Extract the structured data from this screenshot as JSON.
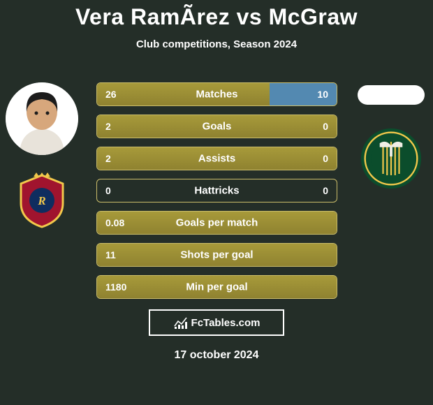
{
  "title": "Vera RamÃ­rez vs McGraw",
  "subtitle": "Club competitions, Season 2024",
  "footer_brand": "FcTables.com",
  "footer_date": "17 october 2024",
  "colors": {
    "background": "#242e28",
    "bar_border": "#cbbd6a",
    "fill_left_a": "#a79a3a",
    "fill_left_b": "#8f8230",
    "fill_right": "#5389b1",
    "text": "#ffffff",
    "title": "#ffffff"
  },
  "player_left": {
    "photo_bg": "#ffffff",
    "face": {
      "skin": "#d7a77c",
      "hair": "#1c1c1c",
      "shirt": "#e8e3da"
    },
    "crest": "RSL",
    "crest_colors": {
      "shield": "#a0142e",
      "rim": "#f2c84b",
      "inner": "#0f2d5f",
      "crown": "#f2c84b"
    }
  },
  "player_right": {
    "photo_bg": "#ffffff",
    "crest": "Timbers",
    "crest_colors": {
      "ring_out": "#0b4d2c",
      "ring_in": "#f2c84b",
      "center": "#0b4d2c",
      "axe": "#f0eee6",
      "stripes": "#f2c84b"
    }
  },
  "stats": [
    {
      "label": "Matches",
      "left_text": "26",
      "right_text": "10",
      "left_pct": 72,
      "right_pct": 28
    },
    {
      "label": "Goals",
      "left_text": "2",
      "right_text": "0",
      "left_pct": 100,
      "right_pct": 0
    },
    {
      "label": "Assists",
      "left_text": "2",
      "right_text": "0",
      "left_pct": 100,
      "right_pct": 0
    },
    {
      "label": "Hattricks",
      "left_text": "0",
      "right_text": "0",
      "left_pct": 0,
      "right_pct": 0
    },
    {
      "label": "Goals per match",
      "left_text": "0.08",
      "right_text": "",
      "left_pct": 100,
      "right_pct": 0
    },
    {
      "label": "Shots per goal",
      "left_text": "11",
      "right_text": "",
      "left_pct": 100,
      "right_pct": 0
    },
    {
      "label": "Min per goal",
      "left_text": "1180",
      "right_text": "",
      "left_pct": 100,
      "right_pct": 0
    }
  ]
}
